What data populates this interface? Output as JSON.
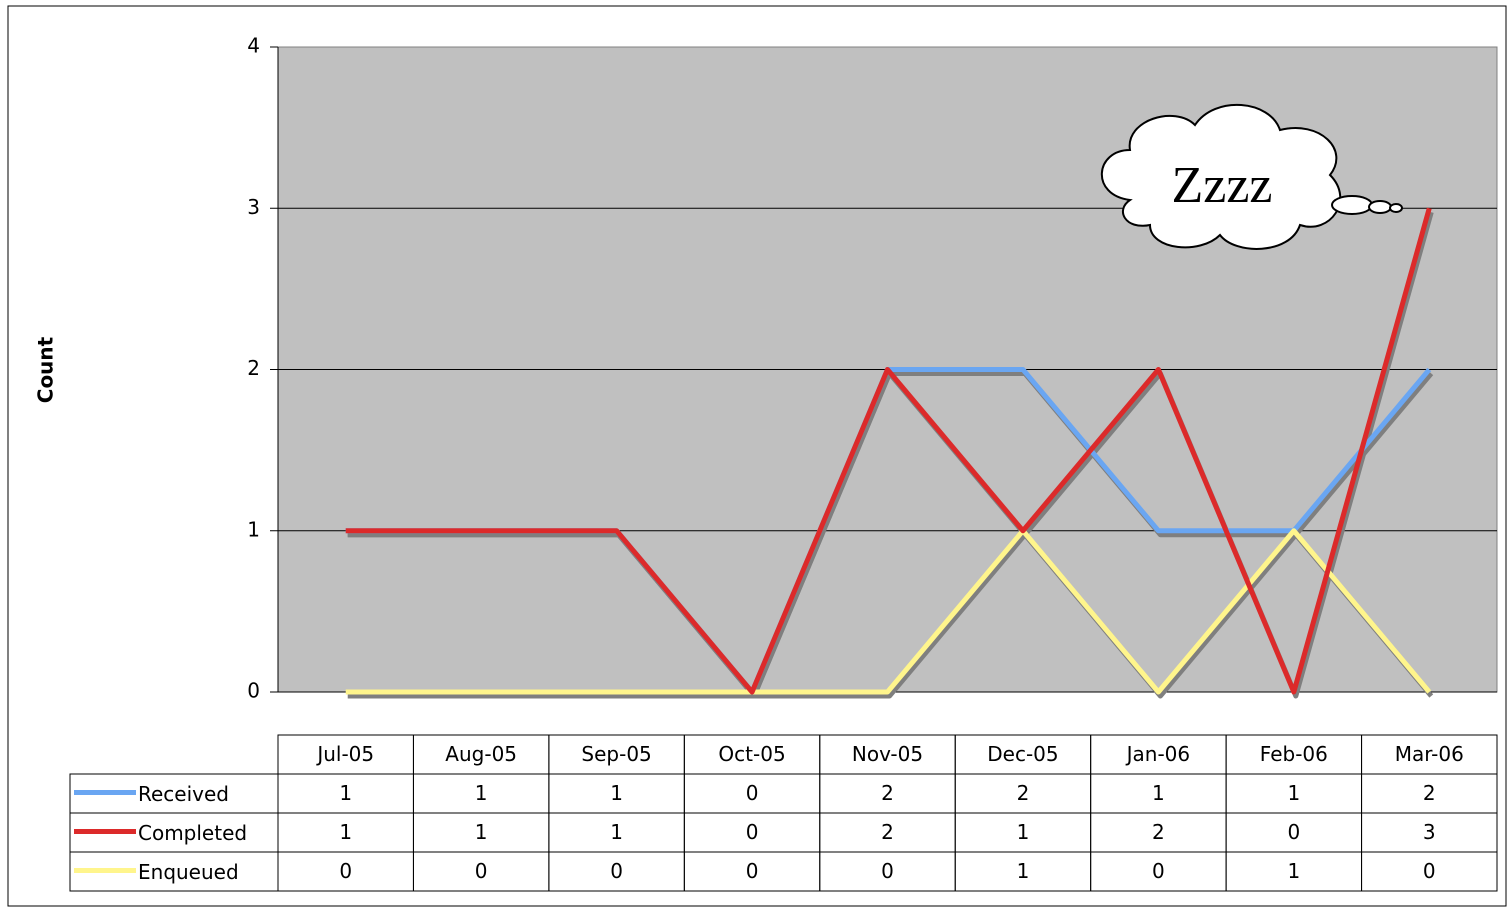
{
  "chart_data": {
    "type": "line",
    "categories": [
      "Jul-05",
      "Aug-05",
      "Sep-05",
      "Oct-05",
      "Nov-05",
      "Dec-05",
      "Jan-06",
      "Feb-06",
      "Mar-06"
    ],
    "series": [
      {
        "name": "Received",
        "color": "#6aa6f2",
        "values": [
          1,
          1,
          1,
          0,
          2,
          2,
          1,
          1,
          2
        ]
      },
      {
        "name": "Completed",
        "color": "#dc2a2a",
        "values": [
          1,
          1,
          1,
          0,
          2,
          1,
          2,
          0,
          3
        ]
      },
      {
        "name": "Enqueued",
        "color": "#fff58c",
        "values": [
          0,
          0,
          0,
          0,
          0,
          1,
          0,
          1,
          0
        ]
      }
    ],
    "y_label": "Count",
    "annotation": "Zzzz",
    "ylim": [
      0,
      4
    ],
    "yticks": [
      0,
      1,
      2,
      3,
      4
    ],
    "grid": true,
    "data_table": true
  }
}
